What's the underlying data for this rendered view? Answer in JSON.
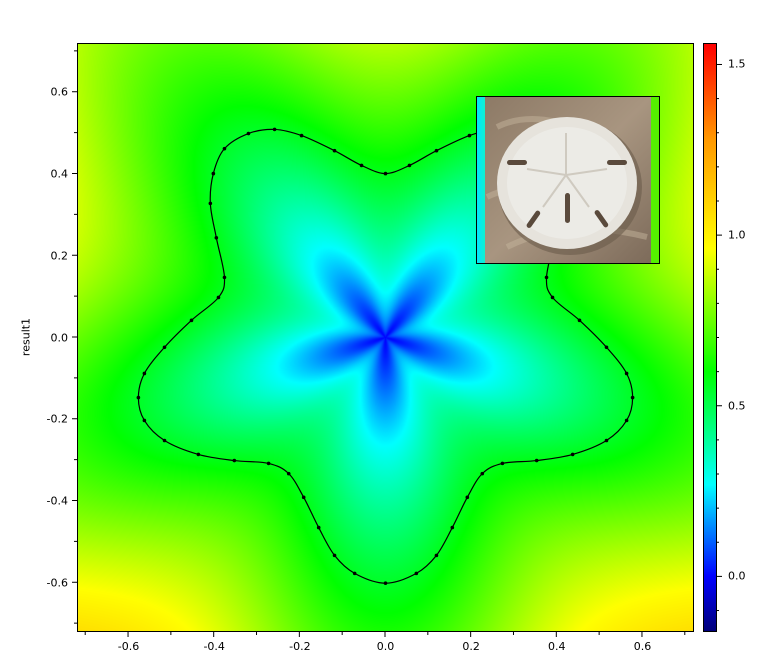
{
  "chart_data": {
    "type": "heatmap",
    "title": "",
    "xlabel": "",
    "ylabel": "result1",
    "xlim": [
      -0.718,
      0.718
    ],
    "ylim": [
      -0.718,
      0.718
    ],
    "x_ticks": [
      -0.6,
      -0.4,
      -0.2,
      0.0,
      0.2,
      0.4,
      0.6
    ],
    "x_tick_labels": [
      "-0.6",
      "-0.4",
      "-0.2",
      "0.0",
      "0.2",
      "0.4",
      "0.6"
    ],
    "y_ticks": [
      0.6,
      0.4,
      0.2,
      0.0,
      -0.2,
      -0.4,
      -0.6
    ],
    "y_tick_labels": [
      "0.6",
      "0.4",
      "0.2",
      "0.0",
      "-0.2",
      "-0.4",
      "-0.6"
    ],
    "grid": false,
    "colorbar": {
      "position": "right",
      "zlim": [
        -0.16,
        1.56
      ],
      "ticks": [
        0.0,
        0.5,
        1.0,
        1.5
      ],
      "tick_labels": [
        "0.0",
        "0.5",
        "1.0",
        "1.5"
      ],
      "colormap": [
        {
          "value": -0.16,
          "color": "#00007a"
        },
        {
          "value": 0.0,
          "color": "#0000ff"
        },
        {
          "value": 0.27,
          "color": "#00ffff"
        },
        {
          "value": 0.6,
          "color": "#00ff00"
        },
        {
          "value": 0.96,
          "color": "#ffff00"
        },
        {
          "value": 1.28,
          "color": "#ff9900"
        },
        {
          "value": 1.56,
          "color": "#ff0000"
        }
      ]
    },
    "contour": {
      "color": "#000000",
      "marker": "dot",
      "points": [
        [
          0.0,
          0.401
        ],
        [
          -0.056,
          0.421
        ],
        [
          -0.119,
          0.457
        ],
        [
          -0.196,
          0.494
        ],
        [
          -0.259,
          0.509
        ],
        [
          -0.32,
          0.499
        ],
        [
          -0.376,
          0.462
        ],
        [
          -0.402,
          0.401
        ],
        [
          -0.409,
          0.328
        ],
        [
          -0.395,
          0.244
        ],
        [
          -0.376,
          0.147
        ],
        [
          -0.39,
          0.098
        ],
        [
          -0.453,
          0.042
        ],
        [
          -0.516,
          -0.024
        ],
        [
          -0.563,
          -0.088
        ],
        [
          -0.577,
          -0.147
        ],
        [
          -0.563,
          -0.203
        ],
        [
          -0.516,
          -0.252
        ],
        [
          -0.437,
          -0.286
        ],
        [
          -0.353,
          -0.301
        ],
        [
          -0.273,
          -0.308
        ],
        [
          -0.226,
          -0.333
        ],
        [
          -0.191,
          -0.391
        ],
        [
          -0.156,
          -0.465
        ],
        [
          -0.119,
          -0.533
        ],
        [
          -0.072,
          -0.577
        ],
        [
          0.0,
          -0.601
        ],
        [
          0.072,
          -0.577
        ],
        [
          0.119,
          -0.533
        ],
        [
          0.156,
          -0.465
        ],
        [
          0.191,
          -0.391
        ],
        [
          0.226,
          -0.333
        ],
        [
          0.273,
          -0.308
        ],
        [
          0.353,
          -0.301
        ],
        [
          0.437,
          -0.286
        ],
        [
          0.516,
          -0.252
        ],
        [
          0.563,
          -0.203
        ],
        [
          0.577,
          -0.147
        ],
        [
          0.563,
          -0.088
        ],
        [
          0.516,
          -0.024
        ],
        [
          0.453,
          0.042
        ],
        [
          0.39,
          0.098
        ],
        [
          0.376,
          0.147
        ],
        [
          0.395,
          0.244
        ],
        [
          0.409,
          0.328
        ],
        [
          0.402,
          0.401
        ],
        [
          0.376,
          0.462
        ],
        [
          0.32,
          0.499
        ],
        [
          0.259,
          0.509
        ],
        [
          0.196,
          0.494
        ],
        [
          0.119,
          0.457
        ],
        [
          0.056,
          0.421
        ]
      ]
    },
    "inset_image": {
      "subject": "sand dollar on sand"
    }
  }
}
